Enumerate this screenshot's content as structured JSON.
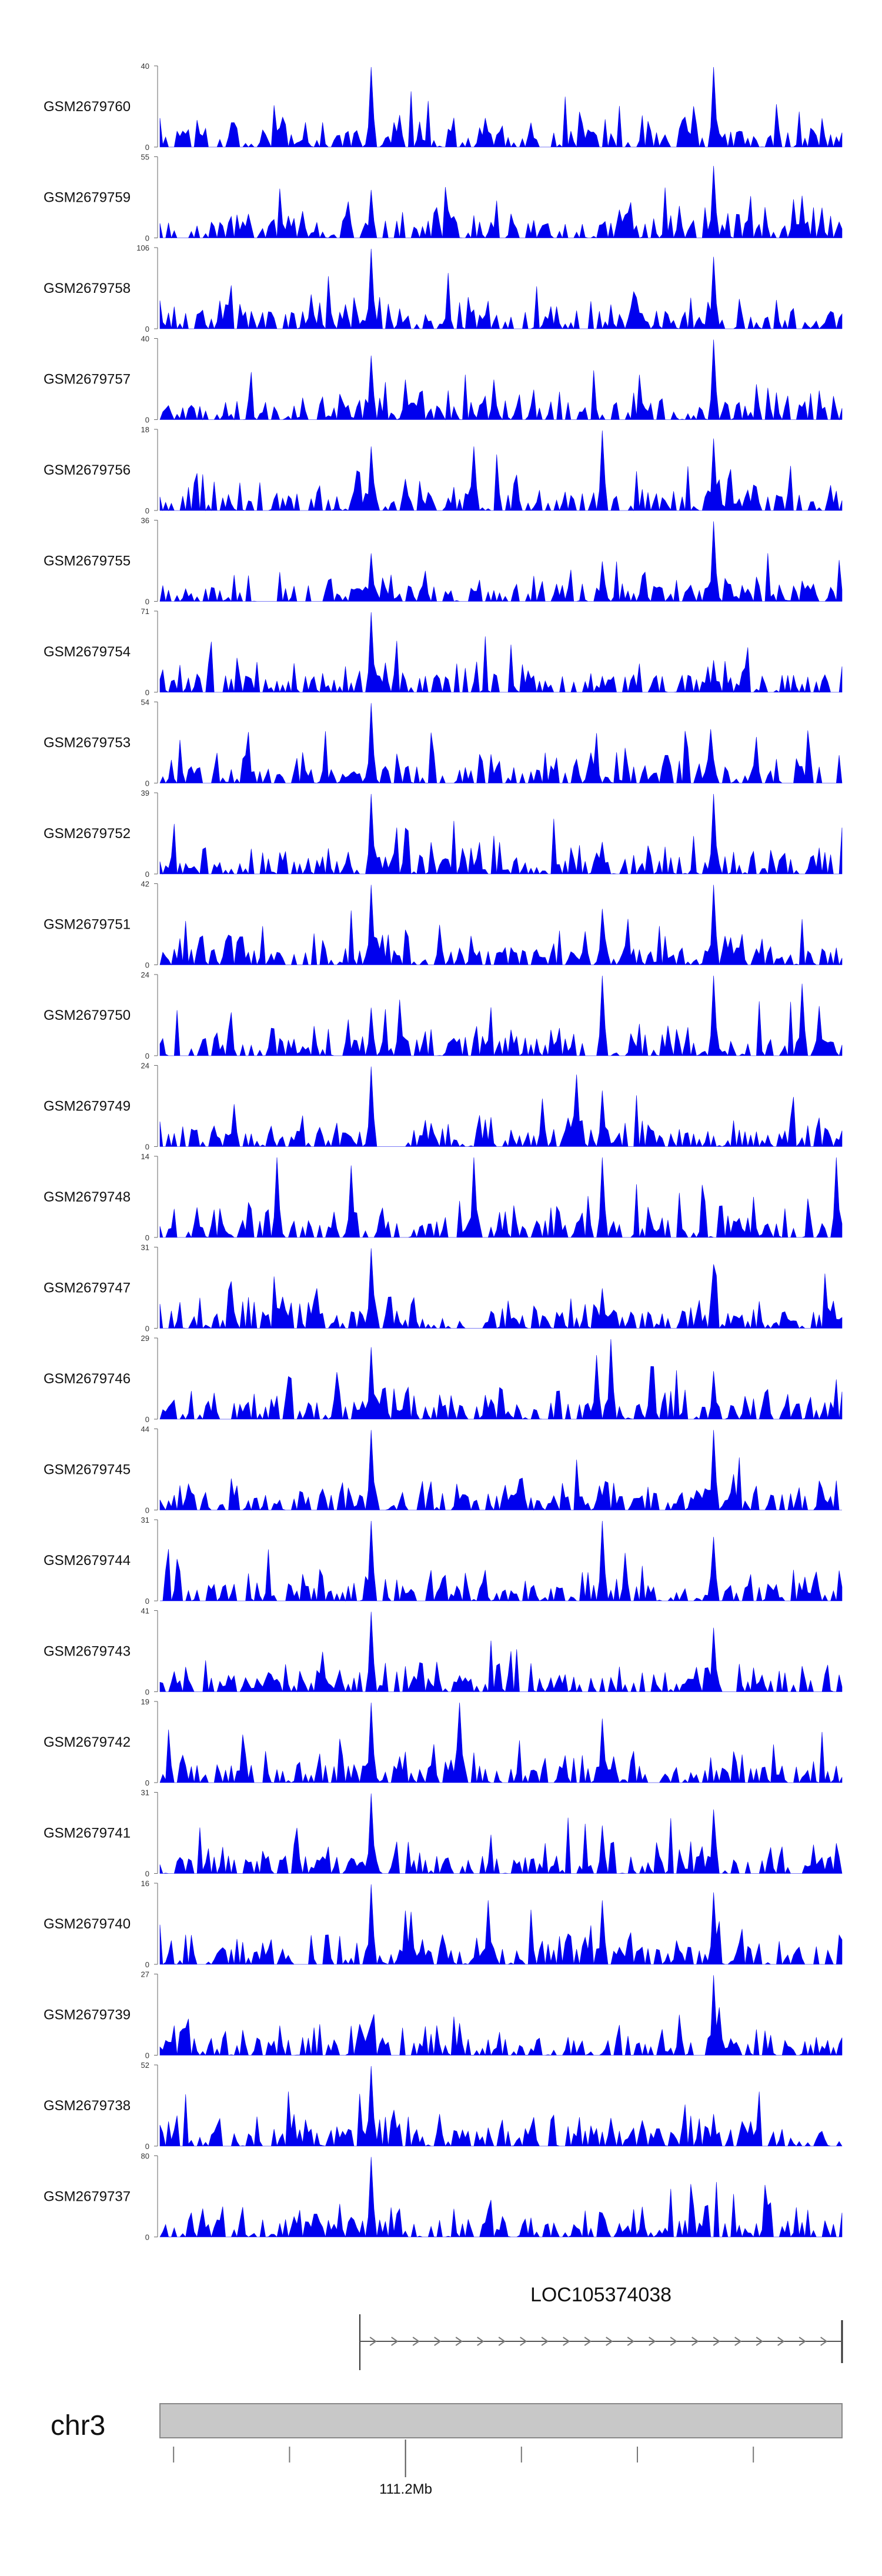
{
  "chart_data": {
    "type": "area",
    "title": "",
    "signal_color": "#0000ee",
    "tracks": [
      {
        "name": "GSM2679760",
        "ymax": "40",
        "ymin": "0",
        "seed": 11,
        "peaks": [
          [
            0.31,
            1.0
          ],
          [
            0.81,
            1.0
          ],
          [
            0.35,
            0.4
          ],
          [
            0.62,
            0.3
          ]
        ]
      },
      {
        "name": "GSM2679759",
        "ymax": "55",
        "ymin": "0",
        "seed": 12,
        "peaks": [
          [
            0.31,
            0.6
          ],
          [
            0.81,
            0.9
          ],
          [
            0.76,
            0.4
          ],
          [
            0.13,
            0.3
          ]
        ]
      },
      {
        "name": "GSM2679758",
        "ymax": "106",
        "ymin": "0",
        "seed": 13,
        "peaks": [
          [
            0.31,
            1.0
          ],
          [
            0.81,
            0.9
          ],
          [
            0.58,
            0.2
          ]
        ]
      },
      {
        "name": "GSM2679757",
        "ymax": "40",
        "ymin": "0",
        "seed": 14,
        "peaks": [
          [
            0.31,
            0.8
          ],
          [
            0.81,
            1.0
          ],
          [
            0.36,
            0.5
          ],
          [
            0.49,
            0.5
          ]
        ]
      },
      {
        "name": "GSM2679756",
        "ymax": "18",
        "ymin": "0",
        "seed": 15,
        "peaks": [
          [
            0.65,
            1.0
          ],
          [
            0.31,
            0.8
          ],
          [
            0.81,
            0.9
          ],
          [
            0.46,
            0.8
          ]
        ]
      },
      {
        "name": "GSM2679755",
        "ymax": "36",
        "ymin": "0",
        "seed": 16,
        "peaks": [
          [
            0.81,
            1.0
          ],
          [
            0.31,
            0.6
          ],
          [
            0.65,
            0.5
          ]
        ]
      },
      {
        "name": "GSM2679754",
        "ymax": "71",
        "ymin": "0",
        "seed": 17,
        "peaks": [
          [
            0.31,
            1.0
          ],
          [
            0.81,
            0.4
          ],
          [
            0.65,
            0.2
          ]
        ]
      },
      {
        "name": "GSM2679753",
        "ymax": "54",
        "ymin": "0",
        "seed": 18,
        "peaks": [
          [
            0.31,
            1.0
          ],
          [
            0.81,
            0.3
          ],
          [
            0.61,
            0.3
          ]
        ]
      },
      {
        "name": "GSM2679752",
        "ymax": "39",
        "ymin": "0",
        "seed": 19,
        "peaks": [
          [
            0.31,
            1.0
          ],
          [
            0.81,
            1.0
          ],
          [
            0.65,
            0.4
          ]
        ]
      },
      {
        "name": "GSM2679751",
        "ymax": "42",
        "ymin": "0",
        "seed": 20,
        "peaks": [
          [
            0.31,
            1.0
          ],
          [
            0.81,
            1.0
          ],
          [
            0.65,
            0.7
          ],
          [
            0.41,
            0.5
          ]
        ]
      },
      {
        "name": "GSM2679750",
        "ymax": "24",
        "ymin": "0",
        "seed": 21,
        "peaks": [
          [
            0.65,
            1.0
          ],
          [
            0.81,
            1.0
          ],
          [
            0.35,
            0.7
          ],
          [
            0.94,
            0.9
          ],
          [
            0.31,
            0.6
          ]
        ]
      },
      {
        "name": "GSM2679749",
        "ymax": "24",
        "ymin": "0",
        "seed": 22,
        "peaks": [
          [
            0.31,
            1.0
          ],
          [
            0.61,
            0.9
          ],
          [
            0.56,
            0.6
          ],
          [
            0.65,
            0.7
          ]
        ]
      },
      {
        "name": "GSM2679748",
        "ymax": "14",
        "ymin": "0",
        "seed": 23,
        "peaks": [
          [
            0.99,
            1.0
          ],
          [
            0.17,
            1.0
          ],
          [
            0.65,
            1.0
          ],
          [
            0.46,
            1.0
          ],
          [
            0.28,
            0.9
          ]
        ]
      },
      {
        "name": "GSM2679747",
        "ymax": "31",
        "ymin": "0",
        "seed": 24,
        "peaks": [
          [
            0.31,
            1.0
          ],
          [
            0.81,
            0.8
          ],
          [
            0.23,
            0.5
          ],
          [
            0.65,
            0.5
          ]
        ]
      },
      {
        "name": "GSM2679746",
        "ymax": "29",
        "ymin": "0",
        "seed": 25,
        "peaks": [
          [
            0.66,
            1.0
          ],
          [
            0.31,
            0.9
          ],
          [
            0.64,
            0.8
          ],
          [
            0.81,
            0.6
          ]
        ]
      },
      {
        "name": "GSM2679745",
        "ymax": "44",
        "ymin": "0",
        "seed": 26,
        "peaks": [
          [
            0.31,
            1.0
          ],
          [
            0.81,
            1.0
          ],
          [
            0.53,
            0.4
          ]
        ]
      },
      {
        "name": "GSM2679744",
        "ymax": "31",
        "ymin": "0",
        "seed": 27,
        "peaks": [
          [
            0.31,
            1.0
          ],
          [
            0.65,
            1.0
          ],
          [
            0.81,
            0.8
          ],
          [
            0.68,
            0.6
          ]
        ]
      },
      {
        "name": "GSM2679743",
        "ymax": "41",
        "ymin": "0",
        "seed": 28,
        "peaks": [
          [
            0.31,
            1.0
          ],
          [
            0.81,
            0.8
          ],
          [
            0.24,
            0.5
          ]
        ]
      },
      {
        "name": "GSM2679742",
        "ymax": "19",
        "ymin": "0",
        "seed": 29,
        "peaks": [
          [
            0.31,
            1.0
          ],
          [
            0.44,
            1.0
          ],
          [
            0.65,
            0.8
          ],
          [
            0.12,
            0.6
          ]
        ]
      },
      {
        "name": "GSM2679741",
        "ymax": "31",
        "ymin": "0",
        "seed": 30,
        "peaks": [
          [
            0.31,
            1.0
          ],
          [
            0.81,
            0.8
          ],
          [
            0.65,
            0.6
          ]
        ]
      },
      {
        "name": "GSM2679740",
        "ymax": "16",
        "ymin": "0",
        "seed": 31,
        "peaks": [
          [
            0.31,
            1.0
          ],
          [
            0.65,
            0.8
          ],
          [
            0.81,
            0.9
          ],
          [
            0.48,
            0.8
          ]
        ]
      },
      {
        "name": "GSM2679739",
        "ymax": "27",
        "ymin": "0",
        "seed": 32,
        "peaks": [
          [
            0.81,
            1.0
          ],
          [
            0.44,
            0.4
          ],
          [
            0.31,
            0.4
          ]
        ]
      },
      {
        "name": "GSM2679738",
        "ymax": "52",
        "ymin": "0",
        "seed": 33,
        "peaks": [
          [
            0.31,
            1.0
          ],
          [
            0.41,
            0.4
          ],
          [
            0.81,
            0.4
          ]
        ]
      },
      {
        "name": "GSM2679737",
        "ymax": "80",
        "ymin": "0",
        "seed": 34,
        "peaks": [
          [
            0.31,
            1.0
          ],
          [
            0.65,
            0.3
          ],
          [
            0.23,
            0.2
          ]
        ]
      }
    ],
    "gene": {
      "name": "LOC105374038",
      "strand": "+",
      "start_fraction": 0.295,
      "end_fraction": 1.0
    },
    "ideogram": {
      "chrom": "chr3",
      "color": "#c8c8c8",
      "edge_color": "#888888"
    },
    "axis": {
      "tick_label": "111.2Mb",
      "tick_fraction": 0.36,
      "minor_tick_fractions": [
        0.02,
        0.19,
        0.53,
        0.7,
        0.87
      ]
    }
  }
}
